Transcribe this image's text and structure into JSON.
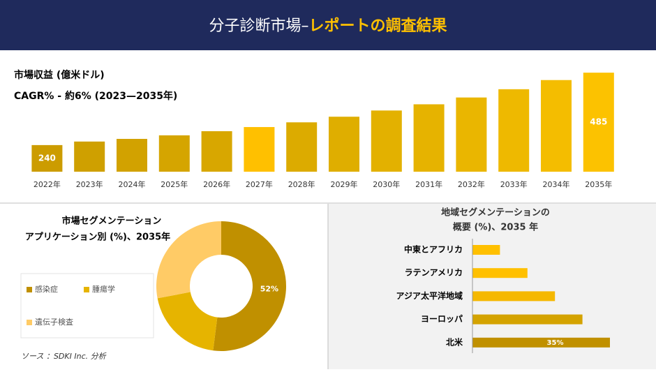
{
  "header": {
    "title": "分子診断市場–",
    "title_highlight": "レポートの調査結果"
  },
  "chart_data": [
    {
      "type": "bar",
      "title": "市場収益 (億米ドル)",
      "subtitle": "CAGR% - 約6% (2023—2035年)",
      "categories": [
        "2022年",
        "2023年",
        "2024年",
        "2025年",
        "2026年",
        "2027年",
        "2028年",
        "2029年",
        "2030年",
        "2031年",
        "2032年",
        "2033年",
        "2034年",
        "2035年"
      ],
      "values": [
        240,
        252,
        261,
        273,
        287,
        301,
        317,
        336,
        357,
        378,
        401,
        429,
        460,
        485
      ],
      "colors": [
        "#cc9c00",
        "#cfa000",
        "#d2a200",
        "#d5a500",
        "#d8a700",
        "#ffc000",
        "#dcab00",
        "#dfae00",
        "#e3b100",
        "#e6b300",
        "#eab600",
        "#eeb900",
        "#f4bd00",
        "#fcc200"
      ],
      "labeled": [
        0,
        13
      ],
      "ylim": [
        150,
        490
      ]
    },
    {
      "type": "donut",
      "title": "市場セグメンテーション",
      "subtitle": "アプリケーション別 (%)、2035年",
      "categories": [
        "感染症",
        "腫瘍学",
        "遺伝子検査"
      ],
      "values": [
        52,
        20,
        28
      ],
      "value_labels": [
        "52%",
        null,
        null
      ],
      "colors": [
        "#c09000",
        "#e6b400",
        "#ffcb66"
      ]
    },
    {
      "type": "barh",
      "title": "地域セグメンテーションの",
      "subtitle": "概要 (%)、2035 年",
      "categories": [
        "中東とアフリカ",
        "ラテンアメリカ",
        "アジア太平洋地域",
        "ヨーロッパ",
        "北米"
      ],
      "values": [
        7,
        14,
        21,
        28,
        35
      ],
      "value_labels": [
        null,
        null,
        null,
        null,
        "35%"
      ],
      "colors": [
        "#ffc000",
        "#ffc000",
        "#f5b800",
        "#d4a300",
        "#c09000"
      ],
      "xlim": [
        0,
        35
      ]
    }
  ],
  "source": "ソース ：SDKI Inc. 分析"
}
